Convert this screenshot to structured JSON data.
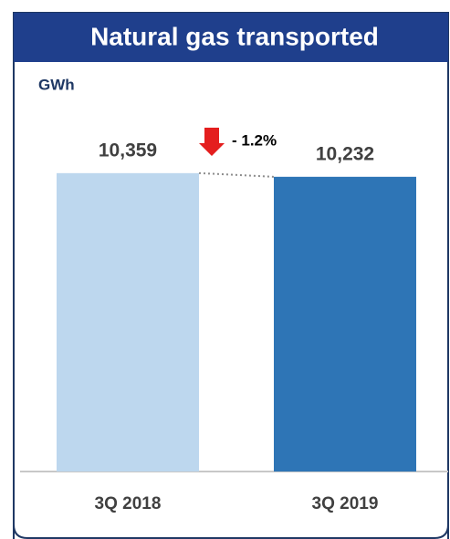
{
  "chart_data": {
    "type": "bar",
    "title": "Natural gas transported",
    "y_label": "GWh",
    "categories": [
      "3Q 2018",
      "3Q 2019"
    ],
    "values": [
      10359,
      10232
    ],
    "value_labels": [
      "10,359",
      "10,232"
    ],
    "colors": [
      "#bdd7ee",
      "#2e75b6"
    ],
    "ylim": [
      0,
      12000
    ],
    "annotations": [
      {
        "text": "- 1.2%"
      }
    ]
  }
}
